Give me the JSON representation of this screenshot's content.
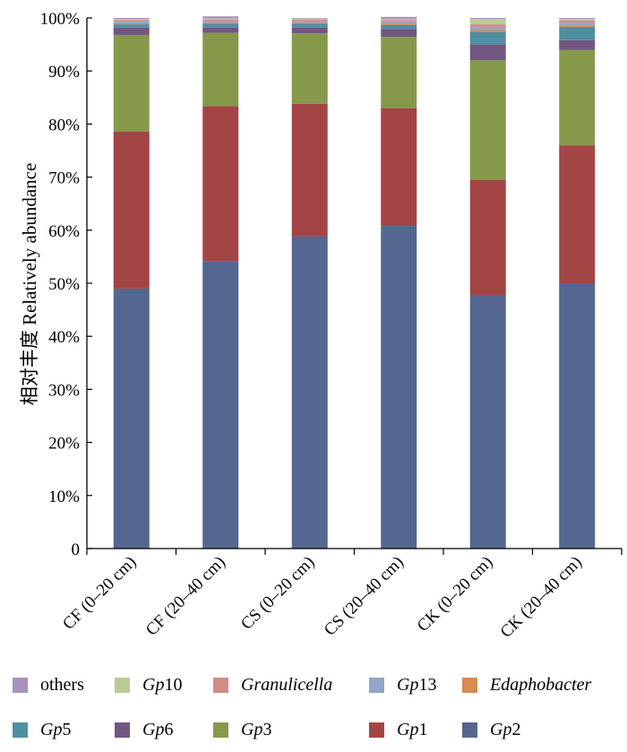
{
  "chart_data": {
    "type": "bar",
    "stacked": true,
    "ylabel": "相对丰度 Relatively abundance",
    "yticks": [
      "0",
      "10%",
      "20%",
      "30%",
      "40%",
      "50%",
      "60%",
      "70%",
      "80%",
      "90%",
      "100%"
    ],
    "ylim": [
      0,
      100
    ],
    "categories": [
      "CF (0–20 cm)",
      "CF (20–40 cm)",
      "CS (0–20 cm)",
      "CS (20–40 cm)",
      "CK (0–20 cm)",
      "CK (20–40 cm)"
    ],
    "series": [
      {
        "name": "Gp2",
        "genus": "Gp",
        "suffix": "2",
        "color": "#546790",
        "values": [
          49.0,
          54.2,
          58.8,
          60.8,
          47.8,
          50.0
        ]
      },
      {
        "name": "Gp1",
        "genus": "Gp",
        "suffix": "1",
        "color": "#a44545",
        "values": [
          29.6,
          29.2,
          25.0,
          22.2,
          21.7,
          26.0
        ]
      },
      {
        "name": "Gp3",
        "genus": "Gp",
        "suffix": "3",
        "color": "#86994b",
        "values": [
          18.2,
          13.8,
          13.3,
          13.4,
          22.5,
          18.0
        ]
      },
      {
        "name": "Gp6",
        "genus": "Gp",
        "suffix": "6",
        "color": "#725682",
        "values": [
          1.4,
          1.0,
          1.1,
          1.5,
          3.0,
          1.8
        ]
      },
      {
        "name": "Gp5",
        "genus": "Gp",
        "suffix": "5",
        "color": "#4e8fa2",
        "values": [
          0.6,
          0.7,
          0.7,
          0.8,
          2.3,
          2.5
        ]
      },
      {
        "name": "Edaphobacter",
        "genus": "Edaphobacter",
        "suffix": "",
        "color": "#d98a4e",
        "values": [
          0.2,
          0.2,
          0.2,
          0.2,
          0.4,
          0.3
        ]
      },
      {
        "name": "Gp13",
        "genus": "Gp",
        "suffix": "13",
        "color": "#93a5c9",
        "values": [
          0.3,
          0.3,
          0.3,
          0.3,
          0.6,
          0.5
        ]
      },
      {
        "name": "Granulicella",
        "genus": "Granulicella",
        "suffix": "",
        "color": "#d38b88",
        "values": [
          0.3,
          0.3,
          0.3,
          0.4,
          0.5,
          0.4
        ]
      },
      {
        "name": "Gp10",
        "genus": "Gp",
        "suffix": "10",
        "color": "#b8cc93",
        "values": [
          0.2,
          0.2,
          0.2,
          0.2,
          1.0,
          0.3
        ]
      },
      {
        "name": "others",
        "genus": "",
        "suffix": "",
        "plain": "others",
        "color": "#a792bf",
        "values": [
          0.2,
          0.4,
          0.1,
          0.4,
          0.2,
          0.2
        ]
      }
    ],
    "legend_order": [
      "others",
      "Gp10",
      "Granulicella",
      "Gp13",
      "Edaphobacter",
      "Gp5",
      "Gp6",
      "Gp3",
      "Gp1",
      "Gp2"
    ]
  }
}
